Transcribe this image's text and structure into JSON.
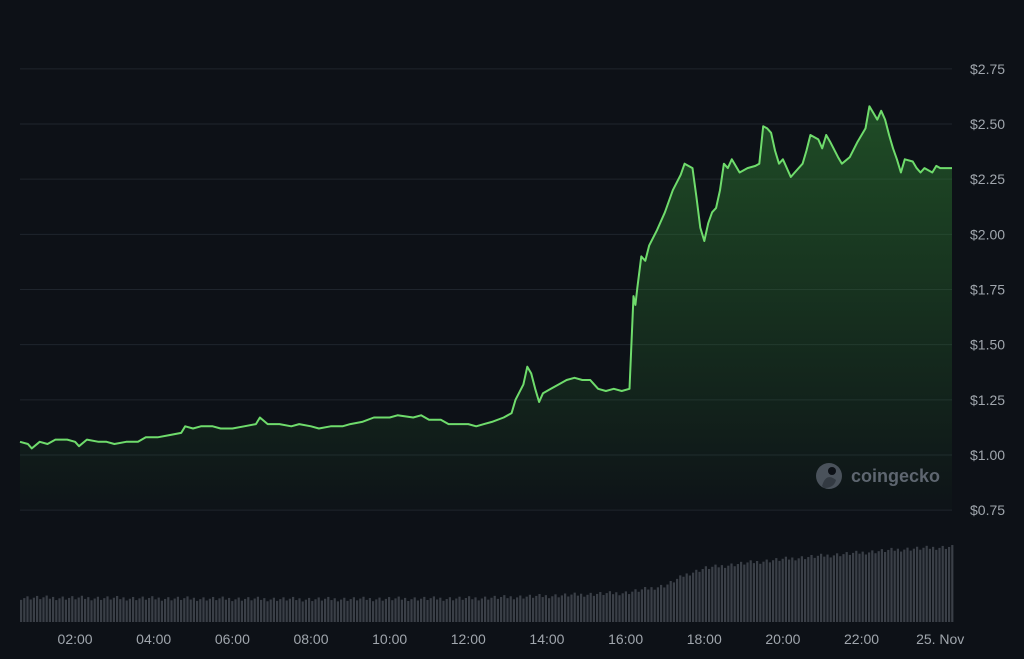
{
  "chart_data": {
    "type": "area",
    "grid": true,
    "colors": {
      "line": "#6fdc6c",
      "fill": "#2e7d32",
      "background": "#0d1117",
      "grid": "#1f252d",
      "volume": "#3a3f47"
    },
    "y_axis": {
      "position": "right",
      "ylim": [
        0.6,
        2.85
      ],
      "ticks": [
        0.75,
        1.0,
        1.25,
        1.5,
        1.75,
        2.0,
        2.25,
        2.5,
        2.75
      ],
      "tick_labels": [
        "$0.75",
        "$1.00",
        "$1.25",
        "$1.50",
        "$1.75",
        "$2.00",
        "$2.25",
        "$2.50",
        "$2.75"
      ]
    },
    "x_axis": {
      "xlim": [
        0.6,
        24.3
      ],
      "ticks": [
        2,
        4,
        6,
        8,
        10,
        12,
        14,
        16,
        18,
        20,
        22,
        24
      ],
      "tick_labels": [
        "02:00",
        "04:00",
        "06:00",
        "08:00",
        "10:00",
        "12:00",
        "14:00",
        "16:00",
        "18:00",
        "20:00",
        "22:00",
        "25. Nov"
      ]
    },
    "series": [
      {
        "points": [
          [
            0.6,
            1.06
          ],
          [
            0.8,
            1.05
          ],
          [
            0.9,
            1.03
          ],
          [
            1.1,
            1.06
          ],
          [
            1.3,
            1.05
          ],
          [
            1.5,
            1.07
          ],
          [
            1.8,
            1.07
          ],
          [
            2.0,
            1.06
          ],
          [
            2.1,
            1.04
          ],
          [
            2.3,
            1.07
          ],
          [
            2.6,
            1.06
          ],
          [
            2.8,
            1.06
          ],
          [
            3.0,
            1.05
          ],
          [
            3.3,
            1.06
          ],
          [
            3.6,
            1.06
          ],
          [
            3.8,
            1.08
          ],
          [
            4.1,
            1.08
          ],
          [
            4.4,
            1.09
          ],
          [
            4.7,
            1.1
          ],
          [
            4.8,
            1.13
          ],
          [
            5.0,
            1.12
          ],
          [
            5.2,
            1.13
          ],
          [
            5.5,
            1.13
          ],
          [
            5.7,
            1.12
          ],
          [
            6.0,
            1.12
          ],
          [
            6.3,
            1.13
          ],
          [
            6.6,
            1.14
          ],
          [
            6.7,
            1.17
          ],
          [
            6.9,
            1.14
          ],
          [
            7.2,
            1.14
          ],
          [
            7.5,
            1.13
          ],
          [
            7.7,
            1.14
          ],
          [
            8.0,
            1.13
          ],
          [
            8.2,
            1.12
          ],
          [
            8.5,
            1.13
          ],
          [
            8.8,
            1.13
          ],
          [
            9.0,
            1.14
          ],
          [
            9.3,
            1.15
          ],
          [
            9.6,
            1.17
          ],
          [
            10.0,
            1.17
          ],
          [
            10.2,
            1.18
          ],
          [
            10.6,
            1.17
          ],
          [
            10.8,
            1.18
          ],
          [
            11.0,
            1.16
          ],
          [
            11.3,
            1.16
          ],
          [
            11.5,
            1.14
          ],
          [
            11.8,
            1.14
          ],
          [
            12.0,
            1.14
          ],
          [
            12.2,
            1.13
          ],
          [
            12.4,
            1.14
          ],
          [
            12.6,
            1.15
          ],
          [
            12.9,
            1.17
          ],
          [
            13.1,
            1.19
          ],
          [
            13.2,
            1.25
          ],
          [
            13.4,
            1.32
          ],
          [
            13.5,
            1.4
          ],
          [
            13.6,
            1.37
          ],
          [
            13.7,
            1.3
          ],
          [
            13.8,
            1.24
          ],
          [
            13.9,
            1.28
          ],
          [
            14.1,
            1.3
          ],
          [
            14.3,
            1.32
          ],
          [
            14.5,
            1.34
          ],
          [
            14.7,
            1.35
          ],
          [
            14.9,
            1.34
          ],
          [
            15.1,
            1.34
          ],
          [
            15.3,
            1.3
          ],
          [
            15.5,
            1.29
          ],
          [
            15.7,
            1.3
          ],
          [
            15.9,
            1.29
          ],
          [
            16.1,
            1.3
          ],
          [
            16.2,
            1.72
          ],
          [
            16.25,
            1.68
          ],
          [
            16.3,
            1.76
          ],
          [
            16.4,
            1.9
          ],
          [
            16.5,
            1.88
          ],
          [
            16.6,
            1.95
          ],
          [
            16.8,
            2.02
          ],
          [
            17.0,
            2.1
          ],
          [
            17.2,
            2.2
          ],
          [
            17.4,
            2.27
          ],
          [
            17.5,
            2.32
          ],
          [
            17.7,
            2.3
          ],
          [
            17.8,
            2.17
          ],
          [
            17.9,
            2.03
          ],
          [
            18.0,
            1.97
          ],
          [
            18.1,
            2.05
          ],
          [
            18.2,
            2.1
          ],
          [
            18.3,
            2.12
          ],
          [
            18.4,
            2.2
          ],
          [
            18.5,
            2.32
          ],
          [
            18.6,
            2.3
          ],
          [
            18.7,
            2.34
          ],
          [
            18.9,
            2.28
          ],
          [
            19.1,
            2.3
          ],
          [
            19.3,
            2.31
          ],
          [
            19.4,
            2.32
          ],
          [
            19.5,
            2.49
          ],
          [
            19.6,
            2.48
          ],
          [
            19.7,
            2.46
          ],
          [
            19.8,
            2.38
          ],
          [
            19.9,
            2.32
          ],
          [
            20.0,
            2.34
          ],
          [
            20.2,
            2.26
          ],
          [
            20.3,
            2.28
          ],
          [
            20.5,
            2.32
          ],
          [
            20.6,
            2.38
          ],
          [
            20.7,
            2.45
          ],
          [
            20.9,
            2.43
          ],
          [
            21.0,
            2.39
          ],
          [
            21.1,
            2.45
          ],
          [
            21.2,
            2.42
          ],
          [
            21.4,
            2.35
          ],
          [
            21.5,
            2.32
          ],
          [
            21.7,
            2.35
          ],
          [
            21.9,
            2.42
          ],
          [
            22.1,
            2.48
          ],
          [
            22.2,
            2.58
          ],
          [
            22.3,
            2.55
          ],
          [
            22.4,
            2.52
          ],
          [
            22.5,
            2.56
          ],
          [
            22.6,
            2.52
          ],
          [
            22.7,
            2.45
          ],
          [
            22.8,
            2.39
          ],
          [
            22.9,
            2.34
          ],
          [
            23.0,
            2.28
          ],
          [
            23.1,
            2.34
          ],
          [
            23.3,
            2.33
          ],
          [
            23.4,
            2.3
          ],
          [
            23.5,
            2.28
          ],
          [
            23.6,
            2.3
          ],
          [
            23.8,
            2.28
          ],
          [
            23.9,
            2.31
          ],
          [
            24.0,
            2.3
          ],
          [
            24.3,
            2.3
          ]
        ]
      }
    ],
    "volume": [
      [
        0.6,
        0.3
      ],
      [
        4.0,
        0.29
      ],
      [
        8.0,
        0.28
      ],
      [
        12.0,
        0.29
      ],
      [
        14.0,
        0.32
      ],
      [
        16.0,
        0.36
      ],
      [
        17.0,
        0.45
      ],
      [
        17.5,
        0.58
      ],
      [
        18.0,
        0.66
      ],
      [
        19.0,
        0.72
      ],
      [
        20.0,
        0.77
      ],
      [
        21.0,
        0.81
      ],
      [
        22.0,
        0.85
      ],
      [
        23.0,
        0.89
      ],
      [
        24.3,
        0.92
      ]
    ]
  },
  "watermark": {
    "text": "coingecko"
  }
}
